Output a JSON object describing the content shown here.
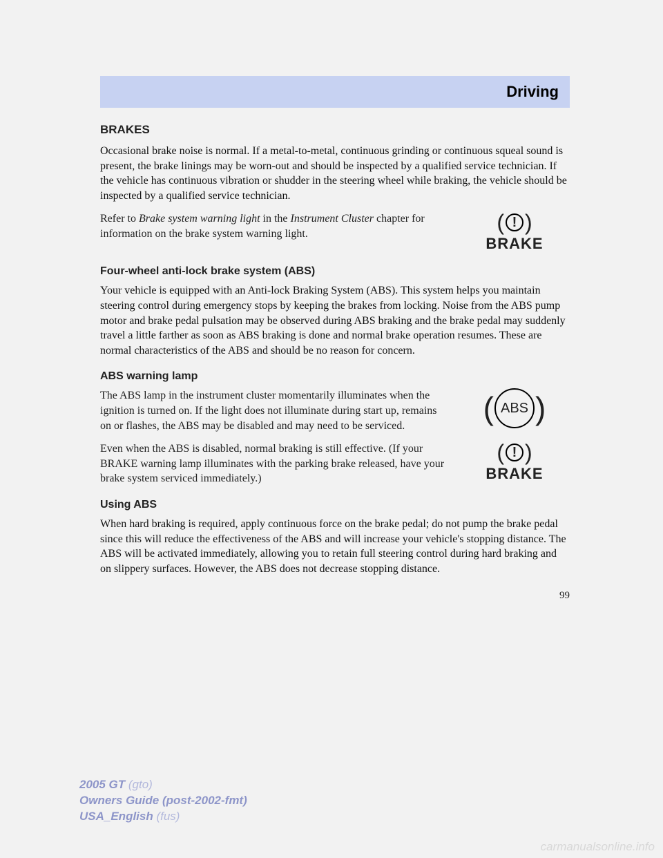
{
  "header": {
    "title": "Driving"
  },
  "sections": {
    "brakes": {
      "heading": "BRAKES",
      "p1": "Occasional brake noise is normal. If a metal-to-metal, continuous grinding or continuous squeal sound is present, the brake linings may be worn-out and should be inspected by a qualified service technician. If the vehicle has continuous vibration or shudder in the steering wheel while braking, the vehicle should be inspected by a qualified service technician.",
      "refer_pre": "Refer to ",
      "refer_em1": "Brake system warning light",
      "refer_mid": " in the ",
      "refer_em2": "Instrument Cluster",
      "refer_post": " chapter for information on the brake system warning light.",
      "brake_word": "BRAKE"
    },
    "abs_system": {
      "heading": "Four-wheel anti-lock brake system (ABS)",
      "p1": "Your vehicle is equipped with an Anti-lock Braking System (ABS). This system helps you maintain steering control during emergency stops by keeping the brakes from locking. Noise from the ABS pump motor and brake pedal pulsation may be observed during ABS braking and the brake pedal may suddenly travel a little farther as soon as ABS braking is done and normal brake operation resumes. These are normal characteristics of the ABS and should be no reason for concern."
    },
    "abs_lamp": {
      "heading": "ABS warning lamp",
      "p1": "The ABS lamp in the instrument cluster momentarily illuminates when the ignition is turned on. If the light does not illuminate during start up, remains on or flashes, the ABS may be disabled and may need to be serviced.",
      "abs_label": "ABS",
      "p2": "Even when the ABS is disabled, normal braking is still effective. (If your BRAKE warning lamp illuminates with the parking brake released, have your brake system serviced immediately.)",
      "brake_word": "BRAKE"
    },
    "using_abs": {
      "heading": "Using ABS",
      "p1": "When hard braking is required, apply continuous force on the brake pedal; do not pump the brake pedal since this will reduce the effectiveness of the ABS and will increase your vehicle's stopping distance. The ABS will be activated immediately, allowing you to retain full steering control during hard braking and on slippery surfaces. However, the ABS does not decrease stopping distance."
    }
  },
  "page_number": "99",
  "footer": {
    "l1a": "2005 GT ",
    "l1b": "(gto)",
    "l2": "Owners Guide (post-2002-fmt)",
    "l3a": "USA_English ",
    "l3b": "(fus)"
  },
  "watermark": "carmanualsonline.info"
}
